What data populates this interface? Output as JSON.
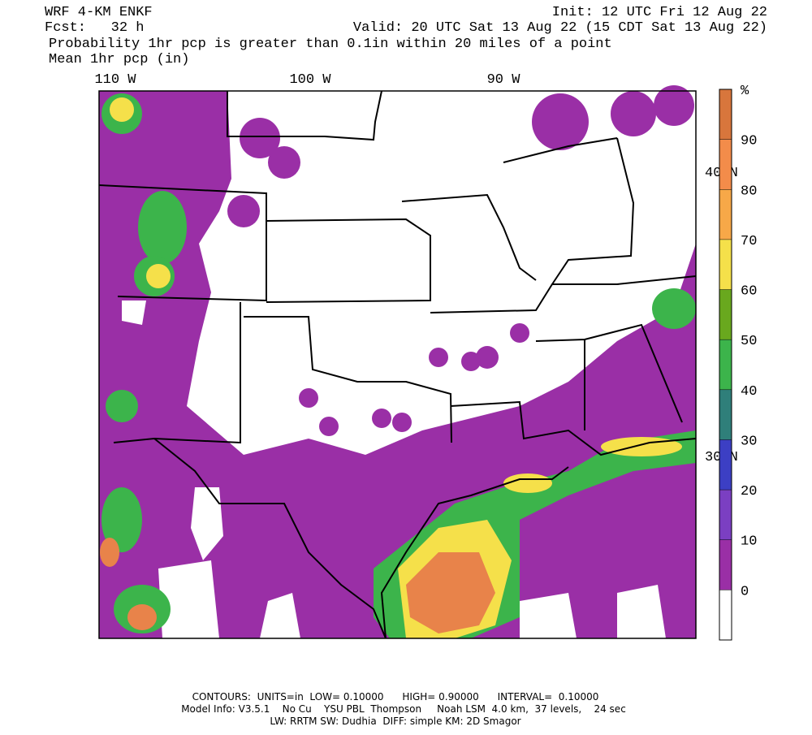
{
  "header": {
    "model": "WRF 4-KM ENKF",
    "forecast": "Fcst:   32 h",
    "init": "Init: 12 UTC Fri 12 Aug 22",
    "valid": "Valid: 20 UTC Sat 13 Aug 22 (15 CDT Sat 13 Aug 22)",
    "field": "Probability 1hr pcp is greater than 0.1in within 20 miles of a point",
    "contour": "Mean 1hr pcp (in)"
  },
  "map": {
    "longitude_labels": [
      "110 W",
      "100 W",
      "90 W"
    ],
    "latitude_labels": [
      "40 N",
      "30 N"
    ]
  },
  "colorbar": {
    "unit": "%",
    "ticks": [
      0,
      10,
      20,
      30,
      40,
      50,
      60,
      70,
      80,
      90
    ],
    "lim": [
      -10,
      100
    ],
    "colors": [
      "#ffffff",
      "#9a2fa6",
      "#7b3fc2",
      "#3c3fc4",
      "#2f7f7a",
      "#3cb44b",
      "#69a81e",
      "#f5e04a",
      "#f7a848",
      "#f38c4a",
      "#d8763c"
    ]
  },
  "footer": [
    "CONTOURS:  UNITS=in  LOW= 0.10000      HIGH= 0.90000      INTERVAL=  0.10000",
    "Model Info: V3.5.1    No Cu    YSU PBL  Thompson     Noah LSM  4.0 km,  37 levels,    24 sec",
    "LW: RRTM SW: Dudhia  DIFF: simple KM: 2D Smagor"
  ]
}
